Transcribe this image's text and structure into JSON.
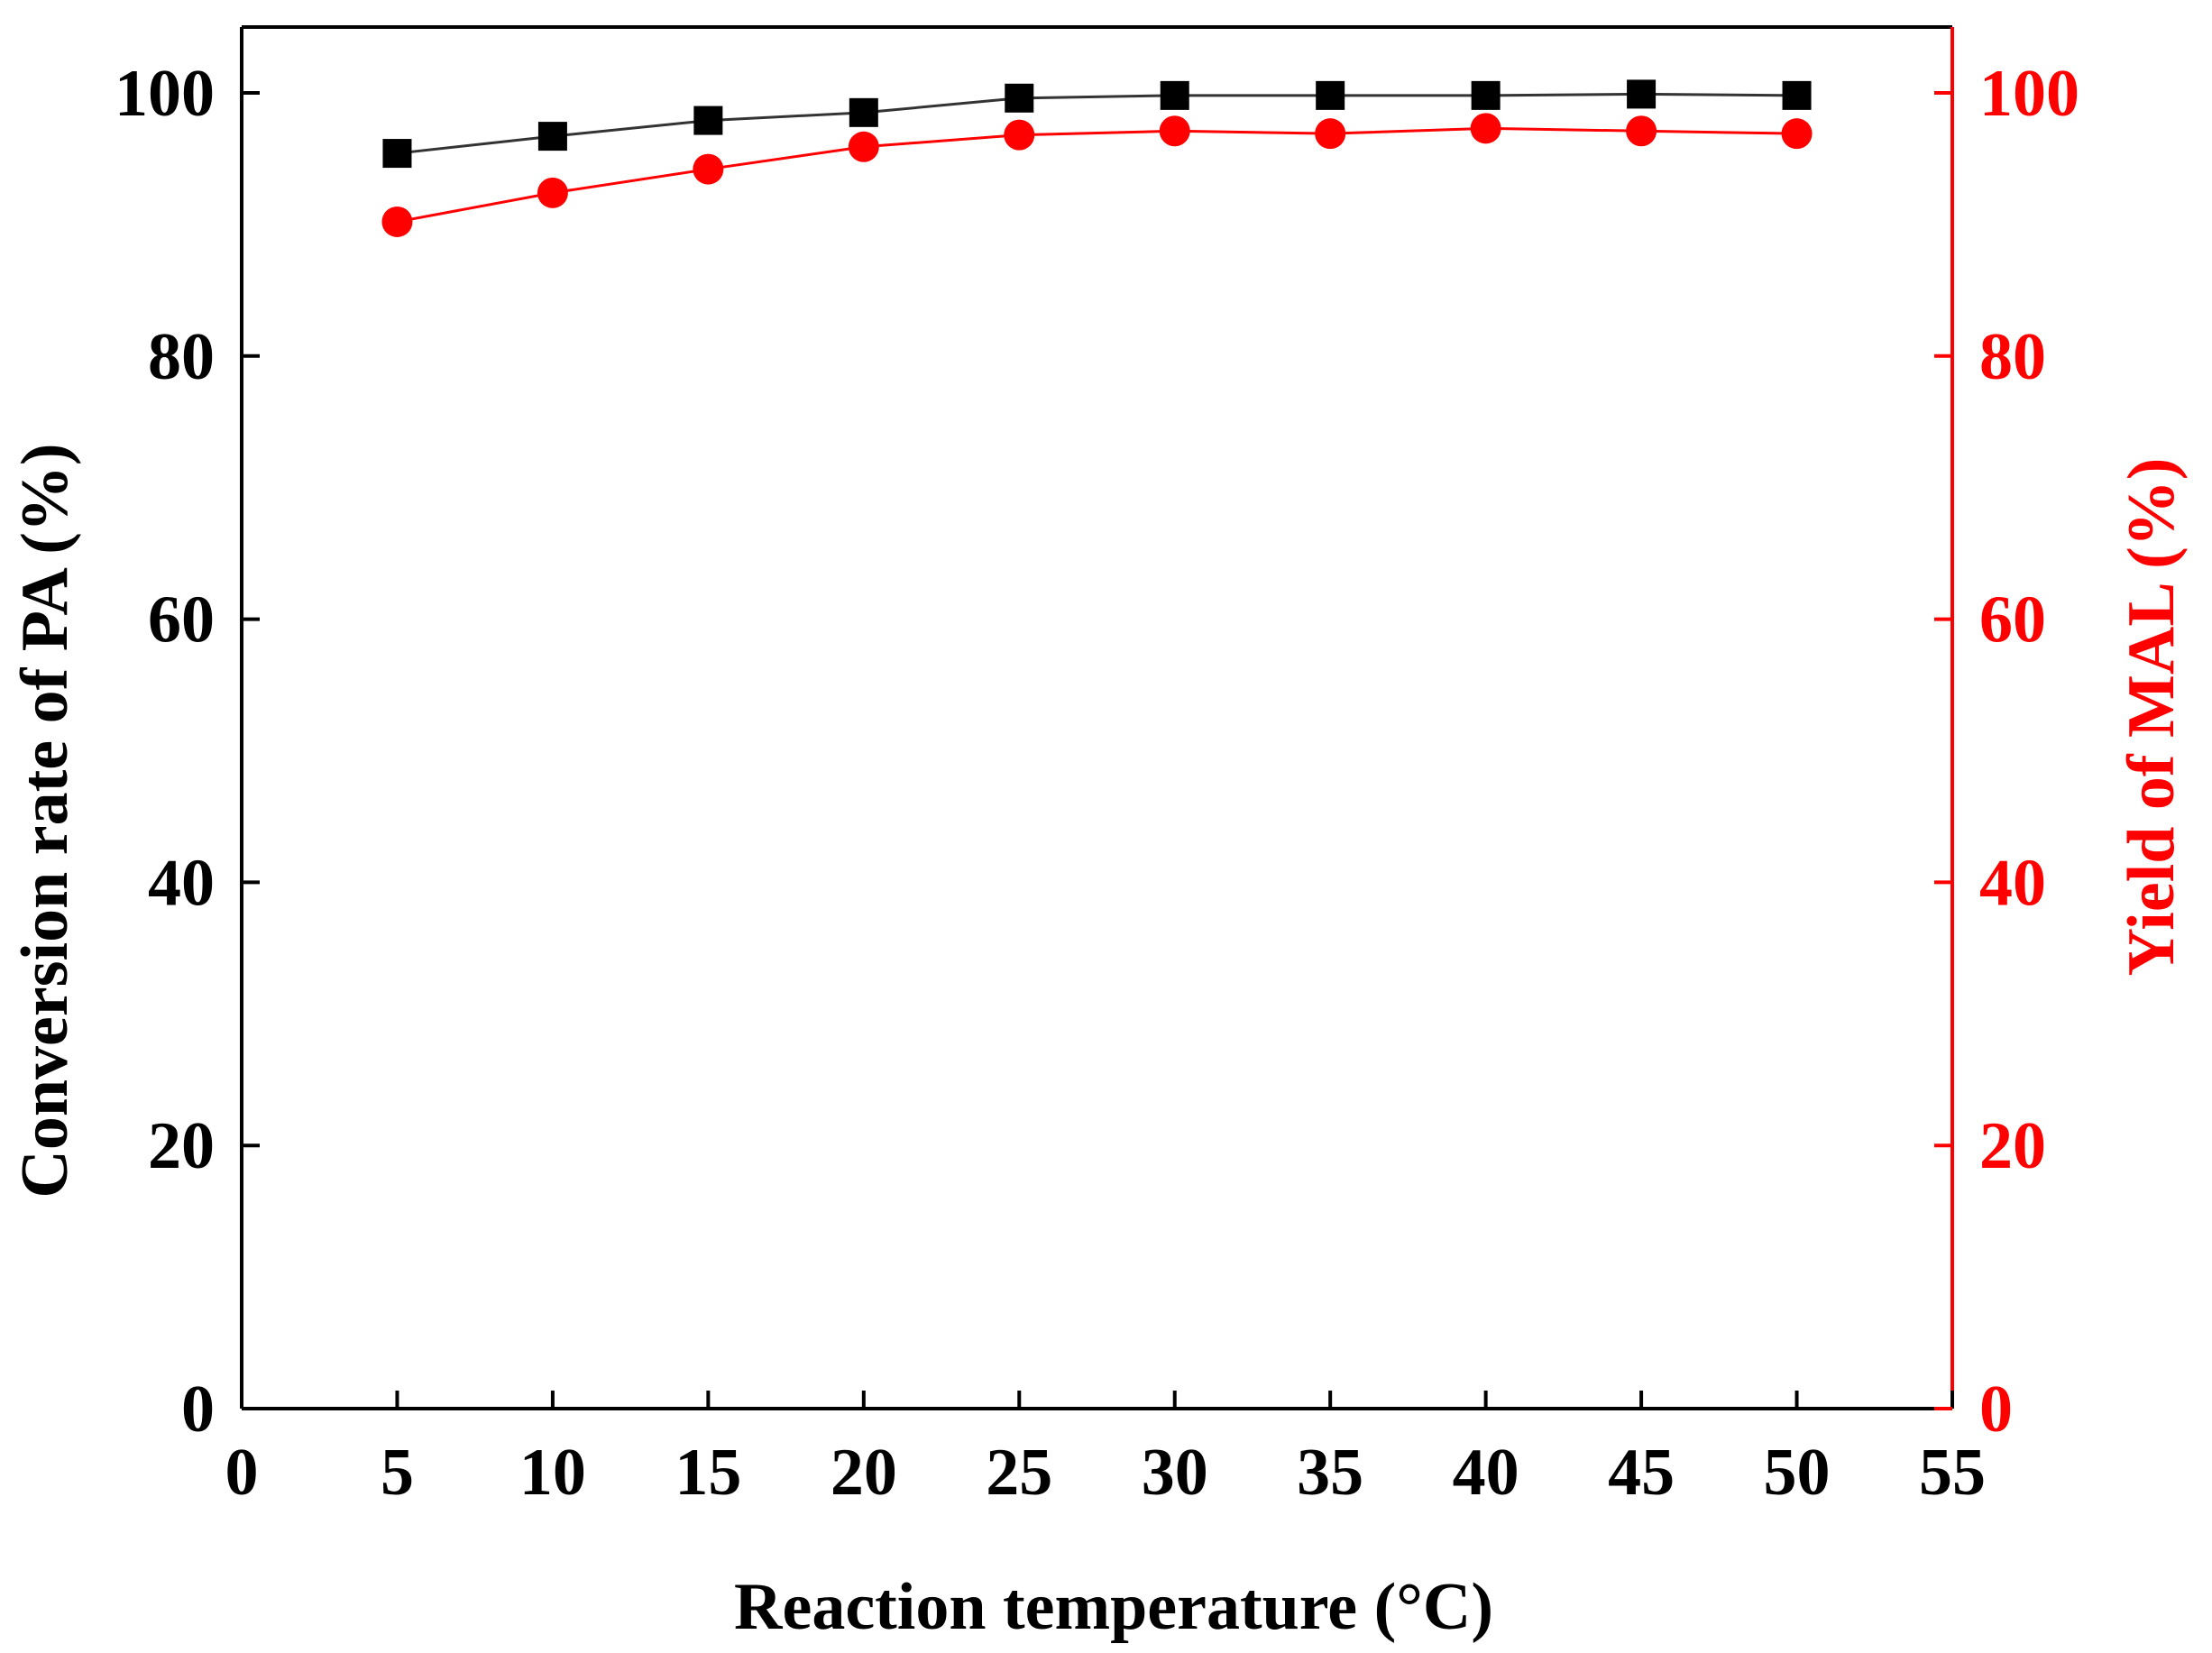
{
  "chart_data": {
    "type": "line",
    "x": [
      5,
      10,
      15,
      20,
      25,
      30,
      35,
      40,
      45,
      50
    ],
    "xlabel": "Reaction temperature (°C)",
    "xlim": [
      0,
      55
    ],
    "xticks": [
      0,
      5,
      10,
      15,
      20,
      25,
      30,
      35,
      40,
      45,
      50,
      55
    ],
    "left_axis": {
      "label": "Conversion rate of PA (%)",
      "ylim": [
        0,
        105
      ],
      "ticks": [
        0,
        20,
        40,
        60,
        80,
        100
      ],
      "color": "#000000"
    },
    "right_axis": {
      "label": "Yield of MAL (%)",
      "ylim": [
        0,
        105
      ],
      "ticks": [
        0,
        20,
        40,
        60,
        80,
        100
      ],
      "color": "#ff0000"
    },
    "series": [
      {
        "name": "Conversion rate of PA",
        "axis": "left",
        "marker": "square",
        "color": "#000000",
        "line_color": "#333333",
        "values": [
          95.4,
          96.7,
          97.9,
          98.5,
          99.6,
          99.8,
          99.8,
          99.8,
          99.9,
          99.8
        ]
      },
      {
        "name": "Yield of MAL",
        "axis": "right",
        "marker": "circle",
        "color": "#ff0000",
        "line_color": "#ff0000",
        "values": [
          90.2,
          92.4,
          94.2,
          95.9,
          96.8,
          97.1,
          96.9,
          97.3,
          97.1,
          96.9
        ]
      }
    ],
    "grid": false,
    "legend": "none"
  }
}
